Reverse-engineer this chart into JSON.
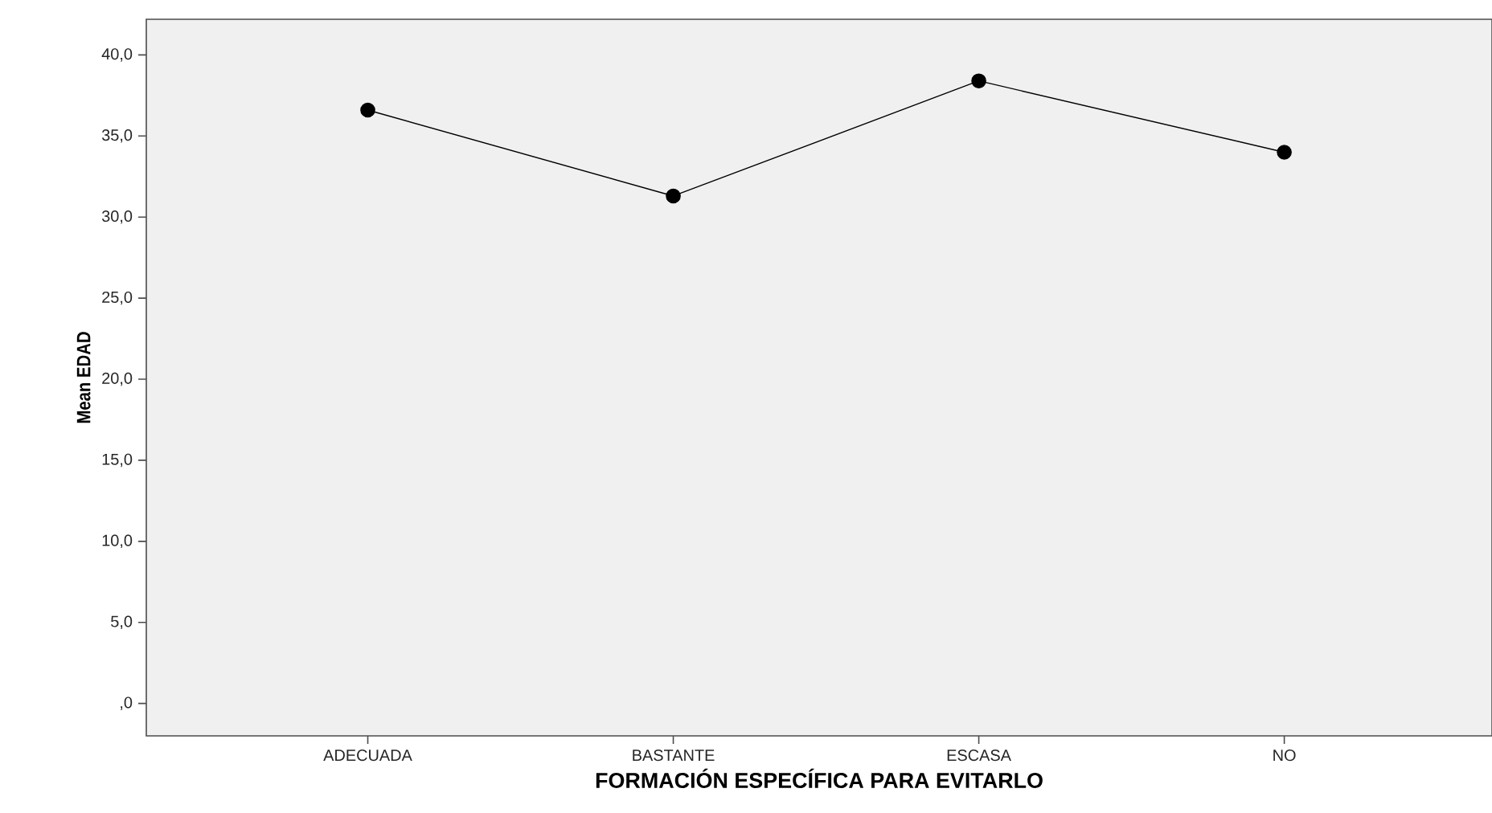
{
  "chart_data": {
    "type": "line",
    "xlabel": "FORMACIÓN ESPECÍFICA PARA EVITARLO",
    "ylabel": "Mean EDAD",
    "categories": [
      "ADECUADA",
      "BASTANTE",
      "ESCASA",
      "NO"
    ],
    "series": [
      {
        "color": "#000000",
        "values": [
          36.6,
          31.3,
          38.4,
          34.0
        ]
      }
    ],
    "ylim": [
      -2.0,
      42.2
    ],
    "yticks": [
      {
        "value": 0,
        "label": ",0"
      },
      {
        "value": 5,
        "label": "5,0"
      },
      {
        "value": 10,
        "label": "10,0"
      },
      {
        "value": 15,
        "label": "15,0"
      },
      {
        "value": 20,
        "label": "20,0"
      },
      {
        "value": 25,
        "label": "25,0"
      },
      {
        "value": 30,
        "label": "30,0"
      },
      {
        "value": 35,
        "label": "35,0"
      },
      {
        "value": 40,
        "label": "40,0"
      }
    ],
    "marker": "circle",
    "line_style": "solid"
  }
}
